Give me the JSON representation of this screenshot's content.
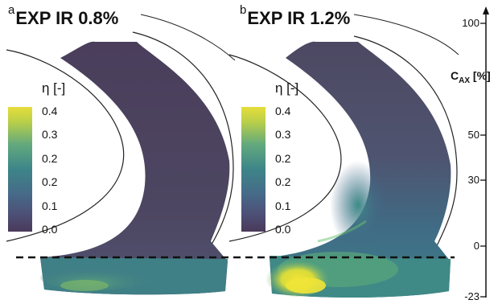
{
  "panels": [
    {
      "letter": "a",
      "title": "EXP IR 0.8%"
    },
    {
      "letter": "b",
      "title": "EXP IR 1.2%"
    }
  ],
  "colorbar": {
    "title": "η [-]",
    "ticks": [
      "0.4",
      "0.3",
      "0.2",
      "0.2",
      "0.1",
      "0.0"
    ],
    "colormap": [
      "#fde725",
      "#b5de2b",
      "#35b779",
      "#1f9e89",
      "#26828e",
      "#31688e",
      "#3e4989",
      "#482878",
      "#440154"
    ]
  },
  "axis": {
    "label": "C",
    "label_sub": "AX",
    "label_unit": " [%]",
    "ticks": [
      "100",
      "50",
      "30",
      "0",
      "-23"
    ]
  },
  "colors": {
    "muted_purple": "#4a3d5c",
    "muted_slate": "#4f5670",
    "muted_teal": "#3b7f86",
    "muted_green": "#4f9f7d",
    "muted_yellow": "#e6e03c"
  }
}
